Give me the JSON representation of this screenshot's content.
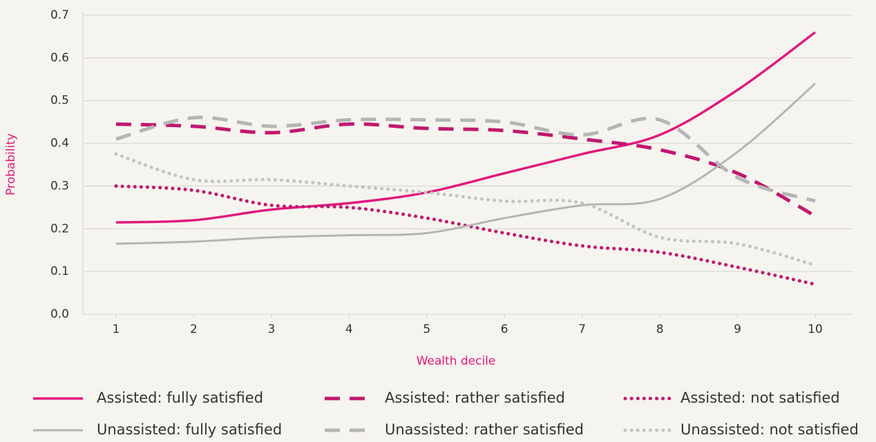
{
  "chart_data": {
    "type": "line",
    "xlabel": "Wealth decile",
    "ylabel": "Probability",
    "x": [
      1,
      2,
      3,
      4,
      5,
      6,
      7,
      8,
      9,
      10
    ],
    "xlim": [
      1,
      10
    ],
    "ylim": [
      0,
      0.7
    ],
    "yticks": [
      {
        "value": 0,
        "label": "0.0"
      },
      0.1,
      0.2,
      0.3,
      0.4,
      0.5,
      0.6,
      0.7
    ],
    "grid": true,
    "series": [
      {
        "name": "Assisted: fully satisfied",
        "color": "#e0197d",
        "style": "solid",
        "line_width": 3.5,
        "values": [
          0.215,
          0.22,
          0.245,
          0.26,
          0.285,
          0.33,
          0.375,
          0.42,
          0.525,
          0.66
        ]
      },
      {
        "name": "Assisted: rather satisfied",
        "color": "#c0186f",
        "style": "dashed",
        "line_width": 5,
        "values": [
          0.445,
          0.44,
          0.425,
          0.445,
          0.435,
          0.43,
          0.41,
          0.385,
          0.33,
          0.23
        ]
      },
      {
        "name": "Assisted: not satisfied",
        "color": "#c0186f",
        "style": "dotted",
        "line_width": 5,
        "values": [
          0.3,
          0.29,
          0.255,
          0.25,
          0.225,
          0.19,
          0.16,
          0.145,
          0.11,
          0.07
        ]
      },
      {
        "name": "Unassisted: fully satisfied",
        "color": "#b5b5b5",
        "style": "solid",
        "line_width": 3,
        "values": [
          0.165,
          0.17,
          0.18,
          0.185,
          0.19,
          0.225,
          0.255,
          0.27,
          0.38,
          0.54
        ]
      },
      {
        "name": "Unassisted: rather satisfied",
        "color": "#b5b5b5",
        "style": "dashed",
        "line_width": 5,
        "values": [
          0.41,
          0.46,
          0.44,
          0.455,
          0.455,
          0.45,
          0.42,
          0.455,
          0.32,
          0.265
        ]
      },
      {
        "name": "Unassisted: not satisfied",
        "color": "#c4c4c4",
        "style": "dotted",
        "line_width": 5,
        "values": [
          0.375,
          0.315,
          0.315,
          0.3,
          0.285,
          0.265,
          0.26,
          0.18,
          0.165,
          0.115
        ]
      }
    ]
  }
}
